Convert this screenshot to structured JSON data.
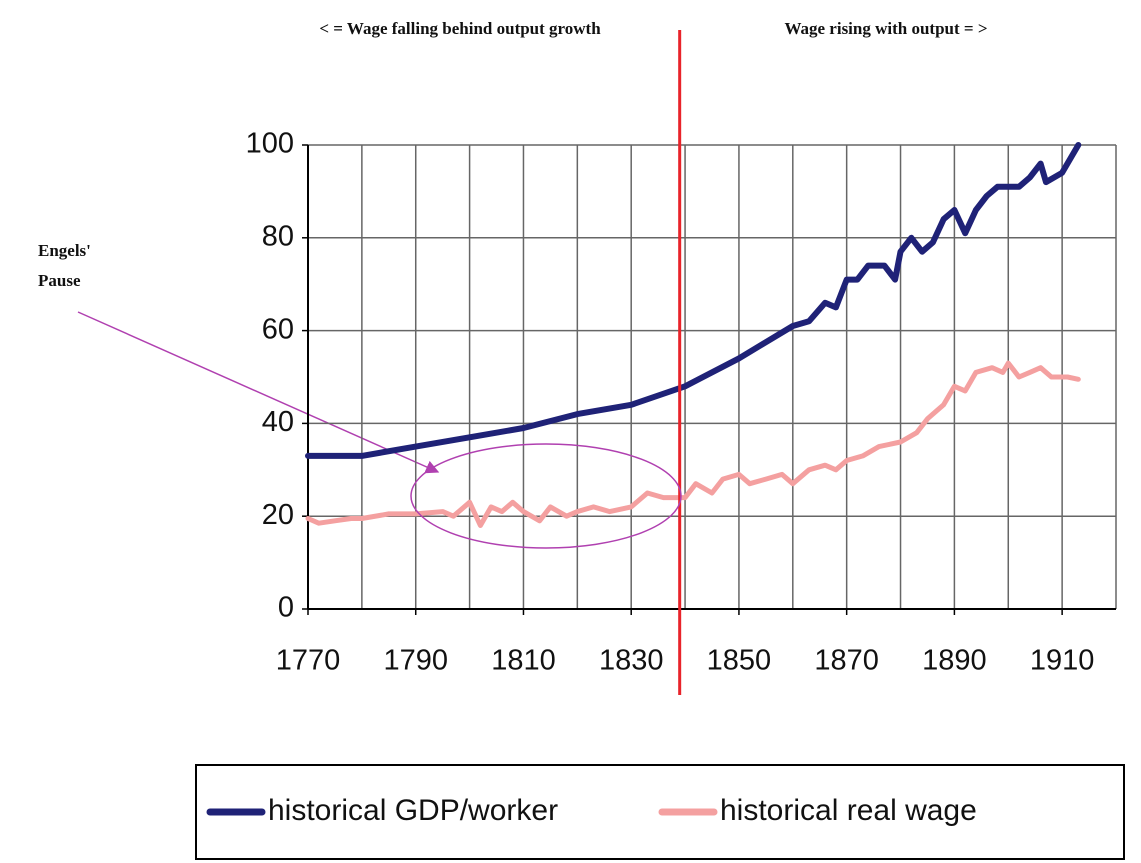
{
  "chart_data": {
    "type": "line",
    "annotations": [
      "< = Wage falling behind output growth",
      "Wage rising with output = >"
    ],
    "callout": [
      "Engels'",
      "Pause"
    ],
    "xlim": [
      1770,
      1920
    ],
    "xticks": [
      1770,
      1790,
      1810,
      1830,
      1850,
      1870,
      1890,
      1910
    ],
    "xgrid": [
      1770,
      1780,
      1790,
      1800,
      1810,
      1820,
      1830,
      1840,
      1850,
      1860,
      1870,
      1880,
      1890,
      1900,
      1910,
      1920
    ],
    "ylim": [
      0,
      100
    ],
    "yticks": [
      0,
      20,
      40,
      60,
      80,
      100
    ],
    "grid": true,
    "vline": {
      "x": 1839,
      "color": "#e8232a"
    },
    "series": [
      {
        "name": "historical GDP/worker",
        "color": "#1f2277",
        "x": [
          1770,
          1780,
          1790,
          1800,
          1810,
          1820,
          1830,
          1840,
          1850,
          1860,
          1863,
          1866,
          1868,
          1870,
          1872,
          1874,
          1877,
          1879,
          1880,
          1882,
          1884,
          1886,
          1888,
          1890,
          1892,
          1894,
          1896,
          1898,
          1900,
          1902,
          1904,
          1906,
          1907,
          1910,
          1913
        ],
        "values": [
          33,
          33,
          35,
          37,
          39,
          42,
          44,
          48,
          54,
          61,
          62,
          66,
          65,
          71,
          71,
          74,
          74,
          71,
          77,
          80,
          77,
          79,
          84,
          86,
          81,
          86,
          89,
          91,
          91,
          91,
          93,
          96,
          92,
          94,
          100
        ]
      },
      {
        "name": "historical real wage",
        "color": "#f4a0a0",
        "x": [
          1770,
          1772,
          1775,
          1778,
          1780,
          1785,
          1790,
          1795,
          1797,
          1800,
          1802,
          1804,
          1806,
          1808,
          1810,
          1813,
          1815,
          1818,
          1820,
          1823,
          1826,
          1830,
          1833,
          1836,
          1840,
          1842,
          1845,
          1847,
          1850,
          1852,
          1855,
          1858,
          1860,
          1863,
          1866,
          1868,
          1870,
          1873,
          1876,
          1880,
          1883,
          1885,
          1888,
          1890,
          1892,
          1894,
          1897,
          1899,
          1900,
          1902,
          1904,
          1906,
          1908,
          1911,
          1913
        ],
        "values": [
          19.5,
          18.5,
          19,
          19.5,
          19.5,
          20.5,
          20.5,
          21,
          20,
          23,
          18,
          22,
          21,
          23,
          21,
          19,
          22,
          20,
          21,
          22,
          21,
          22,
          25,
          24,
          24,
          27,
          25,
          28,
          29,
          27,
          28,
          29,
          27,
          30,
          31,
          30,
          32,
          33,
          35,
          36,
          38,
          41,
          44,
          48,
          47,
          51,
          52,
          51,
          53,
          50,
          51,
          52,
          50,
          50,
          49.5
        ]
      }
    ]
  }
}
